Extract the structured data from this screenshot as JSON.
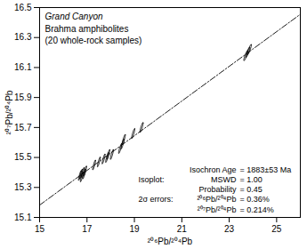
{
  "chart_data": {
    "type": "scatter",
    "marker": "ellipse",
    "color": "#000000",
    "title": "Grand Canyon",
    "subtitle": [
      "Brahma amphibolites",
      "(20 whole-rock samples)"
    ],
    "x_label": "²⁰⁶Pb/²⁰⁴Pb",
    "y_label": "²⁰⁷Pb/²⁰⁴Pb",
    "xlim": [
      15,
      26
    ],
    "ylim": [
      15.1,
      16.5
    ],
    "xticks": [
      15,
      17,
      19,
      21,
      23,
      25
    ],
    "yticks": [
      15.1,
      15.3,
      15.5,
      15.7,
      15.9,
      16.1,
      16.3,
      16.5
    ],
    "grid": false,
    "x": [
      16.7,
      16.75,
      16.78,
      16.82,
      16.88,
      16.92,
      17.3,
      17.5,
      17.7,
      17.85,
      17.9,
      18.05,
      18.4,
      18.5,
      18.55,
      18.95,
      19.3,
      23.7,
      23.78,
      23.85
    ],
    "values": [
      15.38,
      15.39,
      15.37,
      15.4,
      15.39,
      15.41,
      15.45,
      15.47,
      15.49,
      15.5,
      15.52,
      15.52,
      15.56,
      15.59,
      15.62,
      15.66,
      15.7,
      16.18,
      16.2,
      16.22
    ],
    "x_error_percent": 0.36,
    "y_error_percent": 0.214,
    "error_correlation": 0.9,
    "isochron": {
      "x": [
        15,
        26
      ],
      "values": [
        15.182,
        16.455
      ],
      "line_style": "dashdot",
      "color": "#000000"
    },
    "stats": [
      [
        null,
        "Isochron Age",
        "= 1883±53 Ma"
      ],
      [
        "Isoplot:",
        "MSWD",
        "= 1.00"
      ],
      [
        null,
        "Probability",
        "= 0.45"
      ],
      [
        "2σ errors:",
        "²⁰⁶Pb/²⁰⁴Pb",
        "= 0.36%"
      ],
      [
        null,
        "²⁰⁷Pb/²⁰⁴Pb",
        "= 0.214%"
      ]
    ]
  }
}
